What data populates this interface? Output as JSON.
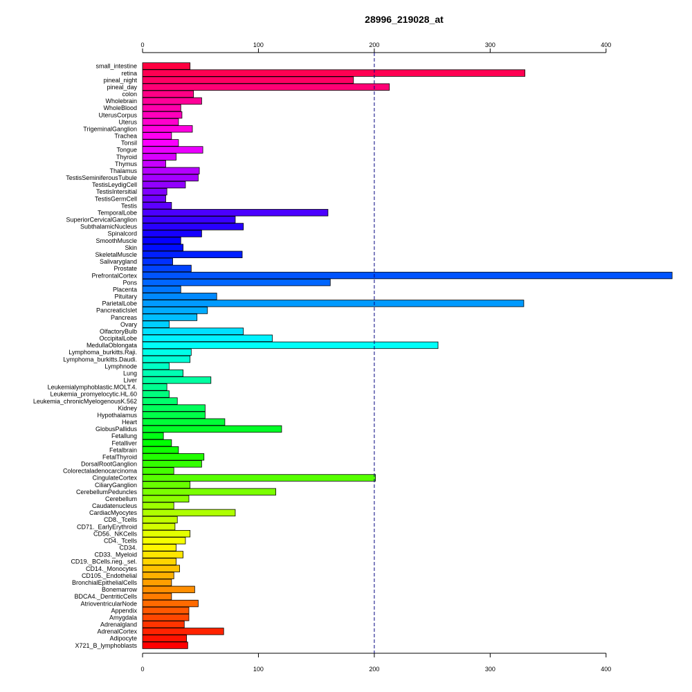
{
  "chart_data": {
    "type": "bar",
    "orientation": "horizontal",
    "title": "28996_219028_at",
    "xlabel": "",
    "ylabel": "",
    "xlim": [
      0,
      455
    ],
    "x_ticks": [
      0,
      100,
      200,
      300,
      400
    ],
    "reference_line": 200,
    "grid": false,
    "categories": [
      "small_intestine",
      "retina",
      "pineal_night",
      "pineal_day",
      "colon",
      "Wholebrain",
      "WholeBlood",
      "UterusCorpus",
      "Uterus",
      "TrigeminalGanglion",
      "Trachea",
      "Tonsil",
      "Tongue",
      "Thyroid",
      "Thymus",
      "Thalamus",
      "TestisSeminiferousTubule",
      "TestisLeydigCell",
      "TestisIntersitial",
      "TestisGermCell",
      "Testis",
      "TemporalLobe",
      "SuperiorCervicalGanglion",
      "SubthalamicNucleus",
      "Spinalcord",
      "SmoothMuscle",
      "Skin",
      "SkeletalMuscle",
      "Salivarygland",
      "Prostate",
      "PrefrontalCortex",
      "Pons",
      "Placenta",
      "Pituitary",
      "ParietalLobe",
      "PancreaticIslet",
      "Pancreas",
      "Ovary",
      "OlfactoryBulb",
      "OccipitalLobe",
      "MedullaOblongata",
      "Lymphoma_burkitts.Raji.",
      "Lymphoma_burkitts.Daudi.",
      "Lymphnode",
      "Lung",
      "Liver",
      "Leukemialymphoblastic.MOLT.4.",
      "Leukemia_promyelocytic.HL.60",
      "Leukemia_chronicMyelogenousK.562",
      "Kidney",
      "Hypothalamus",
      "Heart",
      "GlobusPallidus",
      "Fetallung",
      "Fetalliver",
      "Fetalbrain",
      "FetalThyroid",
      "DorsalRootGanglion",
      "Colorectaladenocarcinoma",
      "CingulateCortex",
      "CiliaryGanglion",
      "CerebellumPeduncles",
      "Cerebellum",
      "Caudatenucleus",
      "CardiacMyocytes",
      "CD8._Tcells",
      "CD71._EarlyErythroid",
      "CD56._NKCells",
      "CD4._Tcells",
      "CD34.",
      "CD33._Myeloid",
      "CD19._BCells.neg._sel.",
      "CD14._Monocytes",
      "CD105._Endothelial",
      "BronchialEpithelialCells",
      "Bonemarrow",
      "BDCA4._DentriticCells",
      "AtrioventricularNode",
      "Appendix",
      "Amygdala",
      "Adrenalgland",
      "AdrenalCortex",
      "Adipocyte",
      "X721_B_lymphoblasts"
    ],
    "values": [
      41,
      330,
      182,
      213,
      44,
      51,
      33,
      34,
      31,
      43,
      25,
      31,
      52,
      29,
      20,
      49,
      48,
      37,
      21,
      20,
      25,
      160,
      80,
      87,
      51,
      33,
      35,
      86,
      26,
      42,
      457,
      162,
      33,
      64,
      329,
      56,
      47,
      23,
      87,
      112,
      255,
      42,
      41,
      23,
      35,
      59,
      21,
      23,
      30,
      54,
      54,
      71,
      120,
      18,
      25,
      31,
      53,
      51,
      27,
      201,
      41,
      115,
      40,
      27,
      80,
      30,
      28,
      41,
      37,
      29,
      35,
      29,
      32,
      27,
      25,
      45,
      25,
      48,
      40,
      40,
      36,
      70,
      38,
      39
    ]
  }
}
